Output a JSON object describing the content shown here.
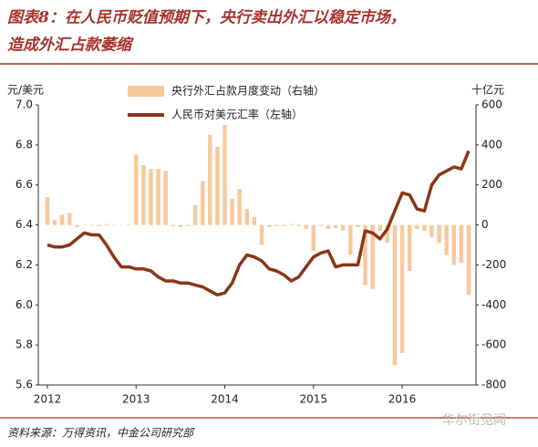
{
  "chart_data": {
    "type": "bar-line",
    "title": [
      "图表8：在人民币贬值预期下，央行卖出外汇以稳定市场，",
      "造成外汇占款萎缩"
    ],
    "y_label": "元/美元",
    "y2_label": "十亿元",
    "source": "资料来源：万得资讯，中金公司研究部",
    "watermark": "华尔街见闻",
    "categories": [
      "2012",
      null,
      null,
      null,
      null,
      null,
      null,
      null,
      null,
      null,
      null,
      null,
      "2013",
      null,
      null,
      null,
      null,
      null,
      null,
      null,
      null,
      null,
      null,
      null,
      "2014",
      null,
      null,
      null,
      null,
      null,
      null,
      null,
      null,
      null,
      null,
      null,
      "2015",
      null,
      null,
      null,
      null,
      null,
      null,
      null,
      null,
      null,
      null,
      null,
      "2016",
      null,
      null,
      null,
      null,
      null,
      null,
      null,
      null,
      null
    ],
    "series": [
      {
        "name": "央行外汇占款月度变动（右轴）",
        "kind": "bar",
        "axis": "y2",
        "color": "#f7c89c",
        "values": [
          140,
          25,
          50,
          60,
          -10,
          0,
          -3,
          -5,
          5,
          0,
          0,
          0,
          350,
          300,
          280,
          280,
          270,
          -5,
          -10,
          -5,
          100,
          220,
          450,
          390,
          500,
          130,
          180,
          80,
          40,
          -100,
          -10,
          -5,
          -5,
          5,
          -5,
          -20,
          -130,
          -5,
          -20,
          -15,
          -30,
          -150,
          -10,
          -300,
          -320,
          -30,
          -90,
          -700,
          -640,
          -230,
          -20,
          -30,
          -60,
          -90,
          -150,
          -200,
          -190,
          -350
        ]
      },
      {
        "name": "人民币对美元汇率（左轴）",
        "kind": "line",
        "axis": "y",
        "color": "#8b3616",
        "values": [
          6.3,
          6.29,
          6.29,
          6.3,
          6.33,
          6.36,
          6.35,
          6.35,
          6.3,
          6.24,
          6.19,
          6.19,
          6.18,
          6.18,
          6.17,
          6.14,
          6.12,
          6.12,
          6.11,
          6.11,
          6.1,
          6.09,
          6.07,
          6.05,
          6.06,
          6.11,
          6.2,
          6.25,
          6.24,
          6.22,
          6.18,
          6.17,
          6.15,
          6.12,
          6.14,
          6.19,
          6.24,
          6.26,
          6.27,
          6.19,
          6.2,
          6.2,
          6.2,
          6.37,
          6.36,
          6.33,
          6.38,
          6.47,
          6.56,
          6.55,
          6.48,
          6.47,
          6.6,
          6.65,
          6.67,
          6.69,
          6.68,
          6.77
        ]
      }
    ],
    "ylim": [
      5.6,
      7.0
    ],
    "yticks": [
      {
        "value": 7,
        "label": "7.0"
      },
      6.8,
      6.6,
      6.4,
      6.2,
      {
        "value": 6,
        "label": "6.0"
      },
      5.8,
      5.6
    ],
    "y2lim": [
      -800,
      600
    ],
    "y2ticks": [
      600,
      400,
      200,
      0,
      -200,
      -400,
      -600,
      -800
    ]
  }
}
